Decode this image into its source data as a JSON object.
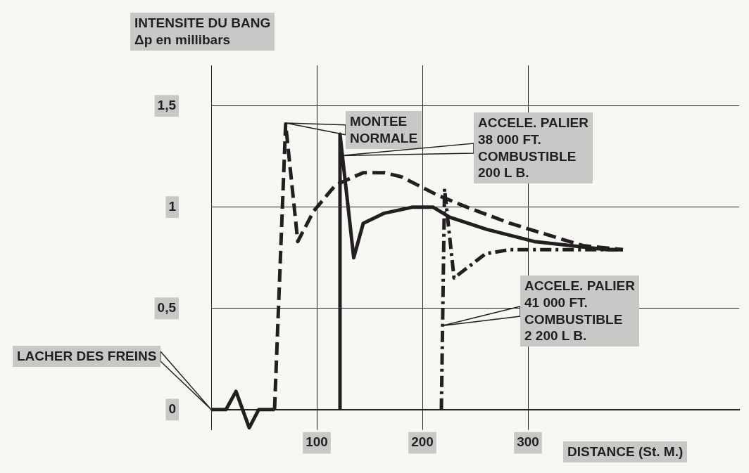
{
  "chart_data": {
    "type": "line",
    "ylabel": "INTENSITE DU BANG\nΔp en millibars",
    "xlabel": "DISTANCE (St. M.)",
    "xlim": [
      0,
      500
    ],
    "xticks": [
      100,
      200,
      300
    ],
    "ylim": [
      -0.1,
      1.7
    ],
    "yticks": [
      0,
      {
        "value": 0.5,
        "label": "0,5"
      },
      1,
      {
        "value": 1.5,
        "label": "1,5"
      }
    ],
    "grid": true,
    "marker": "none",
    "series": [
      {
        "color": "#231f20",
        "line_style": "solid",
        "x": [
          0,
          14,
          23.5,
          36,
          45,
          60
        ],
        "values": [
          0,
          0,
          0.09,
          -0.09,
          0,
          0
        ]
      },
      {
        "color": "#231f20",
        "line_style": "dashed",
        "x": [
          60,
          70.5,
          82,
          97,
          118,
          144,
          164,
          180,
          214,
          242,
          283,
          352,
          390
        ],
        "values": [
          0,
          1.41,
          0.83,
          0.98,
          1.11,
          1.17,
          1.17,
          1.15,
          1.06,
          1.0,
          0.92,
          0.81,
          0.79
        ]
      },
      {
        "color": "#231f20",
        "line_style": "solid",
        "x": [
          122,
          122,
          135,
          144,
          164,
          191,
          210,
          226,
          261,
          306,
          375,
          390
        ],
        "values": [
          0,
          1.36,
          0.75,
          0.92,
          0.97,
          1.0,
          1.0,
          0.95,
          0.89,
          0.83,
          0.79,
          0.79
        ]
      },
      {
        "color": "#231f20",
        "line_style": "dashdot",
        "x": [
          218,
          221,
          230,
          260,
          283,
          339,
          390
        ],
        "values": [
          0,
          1.09,
          0.65,
          0.77,
          0.79,
          0.79,
          0.79
        ]
      }
    ],
    "annotations": [
      "LACHER DES FREINS",
      "MONTEE\nNORMALE",
      "ACCELE. PALIER\n38 000 FT.\nCOMBUSTIBLE\n200 L B.",
      "ACCELE. PALIER\n41 000 FT.\nCOMBUSTIBLE\n2 200 L B."
    ]
  }
}
